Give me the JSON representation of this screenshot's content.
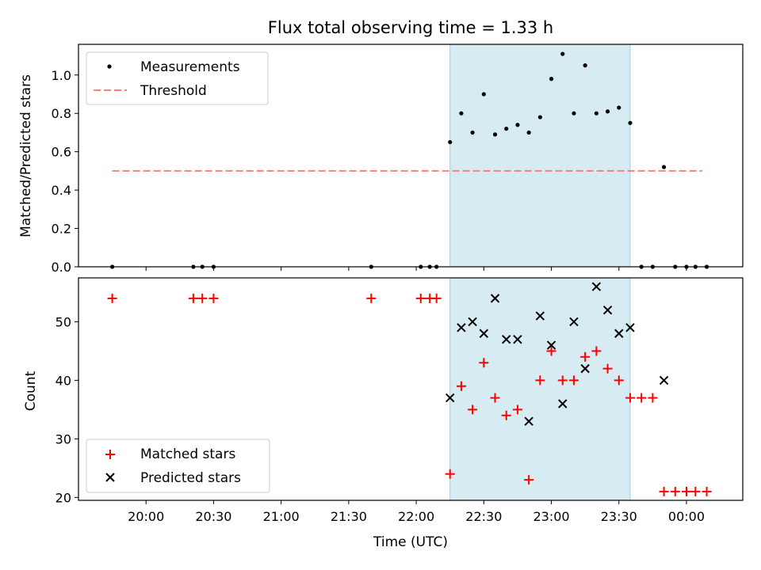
{
  "chart_data": [
    {
      "type": "scatter",
      "title": "Flux total observing time = 1.33 h",
      "ylabel": "Matched/Predicted stars",
      "xlabel": "",
      "xlim": [
        "19:30",
        "00:25"
      ],
      "ylim": [
        0,
        1.16
      ],
      "yticks": [
        "0.0",
        "0.2",
        "0.4",
        "0.6",
        "0.8",
        "1.0"
      ],
      "ytick_values": [
        0,
        0.2,
        0.4,
        0.6,
        0.8,
        1.0
      ],
      "shaded_span": {
        "x": [
          "22:15",
          "23:35"
        ],
        "color": "#add8e6"
      },
      "legend_position": "upper-left",
      "series": [
        {
          "name": "Measurements",
          "marker": "dot",
          "color": "#000000",
          "points": [
            [
              "19:45",
              0.0
            ],
            [
              "20:21",
              0.0
            ],
            [
              "20:25",
              0.0
            ],
            [
              "20:30",
              0.0
            ],
            [
              "21:40",
              0.0
            ],
            [
              "22:02",
              0.0
            ],
            [
              "22:06",
              0.0
            ],
            [
              "22:09",
              0.0
            ],
            [
              "22:15",
              0.65
            ],
            [
              "22:20",
              0.8
            ],
            [
              "22:25",
              0.7
            ],
            [
              "22:30",
              0.9
            ],
            [
              "22:35",
              0.69
            ],
            [
              "22:40",
              0.72
            ],
            [
              "22:45",
              0.74
            ],
            [
              "22:50",
              0.7
            ],
            [
              "22:55",
              0.78
            ],
            [
              "23:00",
              0.98
            ],
            [
              "23:05",
              1.11
            ],
            [
              "23:10",
              0.8
            ],
            [
              "23:15",
              1.05
            ],
            [
              "23:20",
              0.8
            ],
            [
              "23:25",
              0.81
            ],
            [
              "23:30",
              0.83
            ],
            [
              "23:35",
              0.75
            ],
            [
              "23:40",
              0.0
            ],
            [
              "23:45",
              0.0
            ],
            [
              "23:50",
              0.52
            ],
            [
              "23:55",
              0.0
            ],
            [
              "00:00",
              0.0
            ],
            [
              "00:04",
              0.0
            ],
            [
              "00:09",
              0.0
            ]
          ]
        },
        {
          "name": "Threshold",
          "line": "dashed",
          "color": "#ff7f7f",
          "points": [
            [
              "19:45",
              0.5
            ],
            [
              "00:07",
              0.5
            ]
          ]
        }
      ]
    },
    {
      "type": "scatter",
      "title": "",
      "ylabel": "Count",
      "xlabel": "Time (UTC)",
      "xlim": [
        "19:30",
        "00:25"
      ],
      "ylim": [
        19.5,
        57.5
      ],
      "xticks": [
        "20:00",
        "20:30",
        "21:00",
        "21:30",
        "22:00",
        "22:30",
        "23:00",
        "23:30",
        "00:00"
      ],
      "yticks": [
        "20",
        "30",
        "40",
        "50"
      ],
      "ytick_values": [
        20,
        30,
        40,
        50
      ],
      "shaded_span": {
        "x": [
          "22:15",
          "23:35"
        ],
        "color": "#add8e6"
      },
      "legend_position": "lower-left",
      "series": [
        {
          "name": "Matched stars",
          "marker": "plus",
          "color": "#ff0000",
          "points": [
            [
              "19:45",
              54
            ],
            [
              "20:21",
              54
            ],
            [
              "20:25",
              54
            ],
            [
              "20:30",
              54
            ],
            [
              "21:40",
              54
            ],
            [
              "22:02",
              54
            ],
            [
              "22:06",
              54
            ],
            [
              "22:09",
              54
            ],
            [
              "22:15",
              24
            ],
            [
              "22:20",
              39
            ],
            [
              "22:25",
              35
            ],
            [
              "22:30",
              43
            ],
            [
              "22:35",
              37
            ],
            [
              "22:40",
              34
            ],
            [
              "22:45",
              35
            ],
            [
              "22:50",
              23
            ],
            [
              "22:55",
              40
            ],
            [
              "23:00",
              45
            ],
            [
              "23:05",
              40
            ],
            [
              "23:10",
              40
            ],
            [
              "23:15",
              44
            ],
            [
              "23:20",
              45
            ],
            [
              "23:25",
              42
            ],
            [
              "23:30",
              40
            ],
            [
              "23:35",
              37
            ],
            [
              "23:40",
              37
            ],
            [
              "23:45",
              37
            ],
            [
              "23:50",
              21
            ],
            [
              "23:55",
              21
            ],
            [
              "00:00",
              21
            ],
            [
              "00:04",
              21
            ],
            [
              "00:09",
              21
            ]
          ]
        },
        {
          "name": "Predicted stars",
          "marker": "x",
          "color": "#000000",
          "points": [
            [
              "22:15",
              37
            ],
            [
              "22:20",
              49
            ],
            [
              "22:25",
              50
            ],
            [
              "22:30",
              48
            ],
            [
              "22:35",
              54
            ],
            [
              "22:40",
              47
            ],
            [
              "22:45",
              47
            ],
            [
              "22:50",
              33
            ],
            [
              "22:55",
              51
            ],
            [
              "23:00",
              46
            ],
            [
              "23:05",
              36
            ],
            [
              "23:10",
              50
            ],
            [
              "23:15",
              42
            ],
            [
              "23:20",
              56
            ],
            [
              "23:25",
              52
            ],
            [
              "23:30",
              48
            ],
            [
              "23:35",
              49
            ],
            [
              "23:50",
              40
            ]
          ]
        }
      ]
    }
  ]
}
